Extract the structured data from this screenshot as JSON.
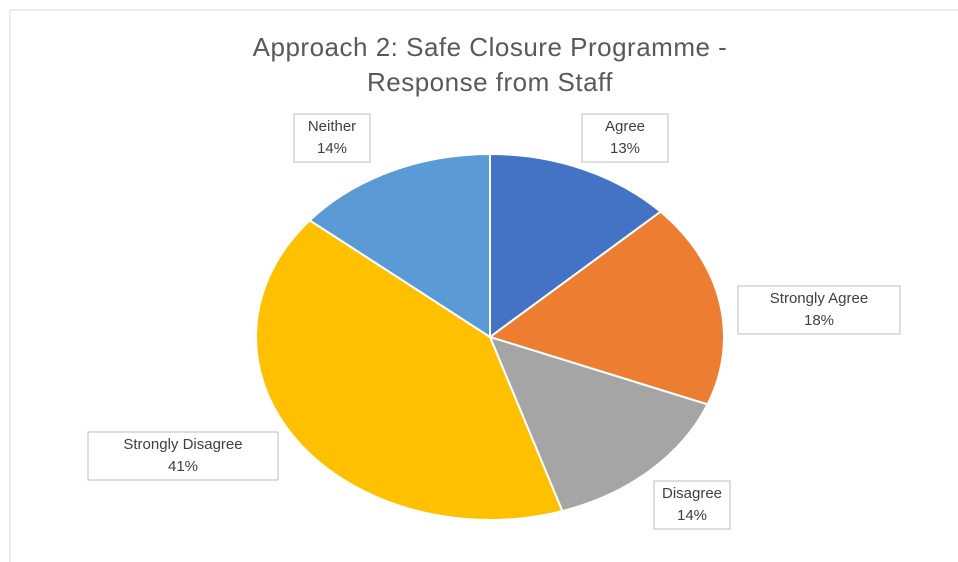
{
  "chart_data": {
    "type": "pie",
    "title": "Approach 2: Safe Closure Programme - Response from Staff",
    "categories": [
      "Agree",
      "Strongly Agree",
      "Disagree",
      "Strongly Disagree",
      "Neither"
    ],
    "values": [
      13,
      18,
      14,
      41,
      14
    ],
    "value_labels": [
      "13%",
      "18%",
      "14%",
      "41%",
      "14%"
    ],
    "colors": [
      "#4472c4",
      "#ed7d31",
      "#a5a5a5",
      "#ffc000",
      "#5b9bd5"
    ]
  }
}
